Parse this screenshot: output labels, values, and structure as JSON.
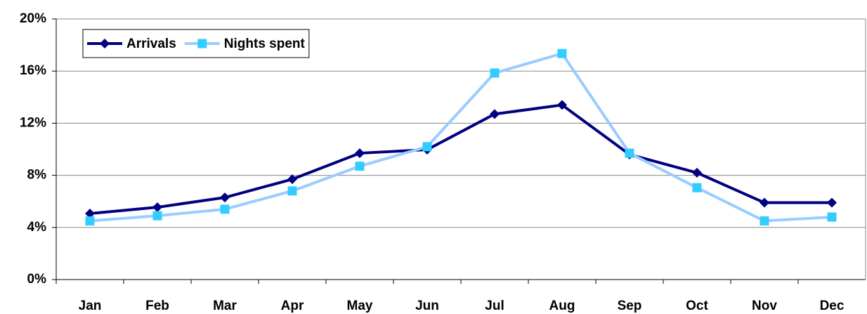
{
  "chart_data": {
    "type": "line",
    "categories": [
      "Jan",
      "Feb",
      "Mar",
      "Apr",
      "May",
      "Jun",
      "Jul",
      "Aug",
      "Sep",
      "Oct",
      "Nov",
      "Dec"
    ],
    "series": [
      {
        "name": "Arrivals",
        "color": "#000080",
        "marker": "diamond",
        "marker_color": "#000080",
        "values": [
          5.07,
          5.55,
          6.3,
          7.7,
          9.7,
          9.97,
          12.7,
          13.4,
          9.6,
          8.2,
          5.9,
          5.9
        ]
      },
      {
        "name": "Nights spent",
        "color": "#99ccff",
        "marker": "square",
        "marker_color": "#33ccff",
        "values": [
          4.5,
          4.9,
          5.4,
          6.8,
          8.7,
          10.2,
          15.85,
          17.35,
          9.7,
          7.05,
          4.5,
          4.8
        ]
      }
    ],
    "ylim": [
      0,
      20
    ],
    "yticks": [
      {
        "value": 0,
        "label": "0%"
      },
      {
        "value": 4,
        "label": "4%"
      },
      {
        "value": 8,
        "label": "8%"
      },
      {
        "value": 12,
        "label": "12%"
      },
      {
        "value": 16,
        "label": "16%"
      },
      {
        "value": 20,
        "label": "20%"
      }
    ],
    "grid": true,
    "legend": "top-left"
  }
}
